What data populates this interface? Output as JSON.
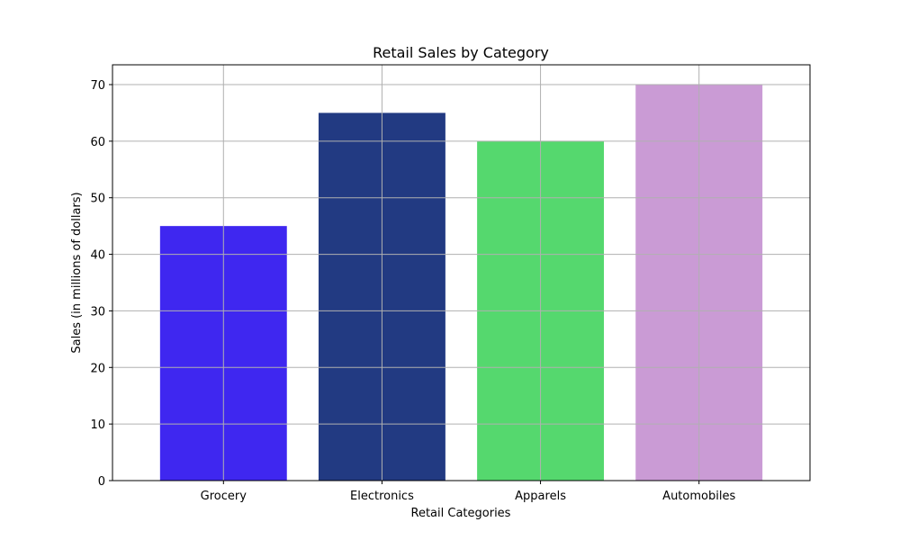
{
  "chart_data": {
    "type": "bar",
    "title": "Retail Sales by Category",
    "xlabel": "Retail Categories",
    "ylabel": "Sales (in millions of dollars)",
    "categories": [
      "Grocery",
      "Electronics",
      "Apparels",
      "Automobiles"
    ],
    "values": [
      45,
      65,
      60,
      70
    ],
    "colors": [
      "#3f27f0",
      "#223a82",
      "#55d86e",
      "#ca9bd5"
    ],
    "ylim": [
      0,
      73.5
    ],
    "yticks": [
      0,
      10,
      20,
      30,
      40,
      50,
      60,
      70
    ],
    "grid": true,
    "legend": "none"
  }
}
